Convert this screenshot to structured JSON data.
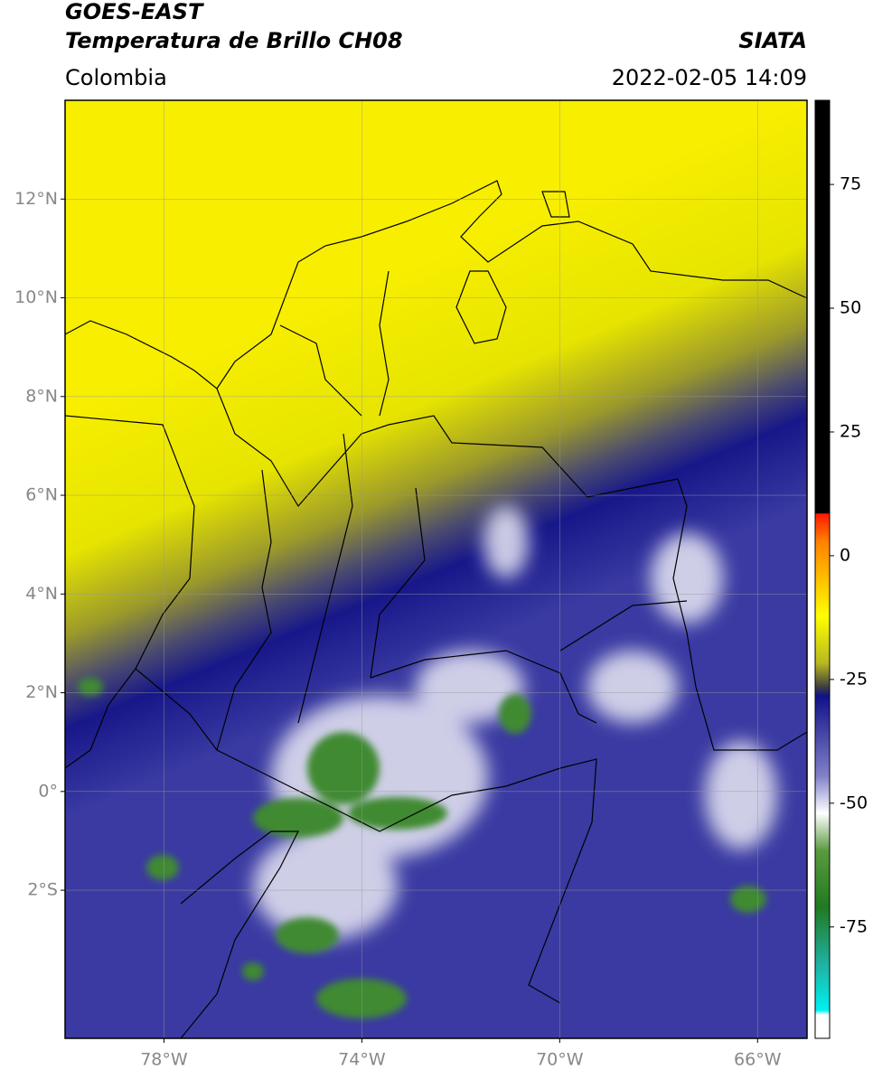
{
  "header": {
    "title": "GOES-EAST",
    "subtitle": "Temperatura de Brillo CH08",
    "region": "Colombia",
    "source": "SIATA",
    "datetime": "2022-02-05 14:09"
  },
  "map": {
    "xlim": [
      -80,
      -65
    ],
    "ylim": [
      -5,
      14
    ],
    "xticks": [
      {
        "value": -78,
        "label": "78°W"
      },
      {
        "value": -74,
        "label": "74°W"
      },
      {
        "value": -70,
        "label": "70°W"
      },
      {
        "value": -66,
        "label": "66°W"
      }
    ],
    "yticks": [
      {
        "value": -2,
        "label": "2°S"
      },
      {
        "value": 0,
        "label": "0°"
      },
      {
        "value": 2,
        "label": "2°N"
      },
      {
        "value": 4,
        "label": "4°N"
      },
      {
        "value": 6,
        "label": "6°N"
      },
      {
        "value": 8,
        "label": "8°N"
      },
      {
        "value": 10,
        "label": "10°N"
      },
      {
        "value": 12,
        "label": "12°N"
      }
    ],
    "grid": true
  },
  "colorbar": {
    "lim": [
      -97.5,
      92
    ],
    "ticks": [
      75,
      50,
      25,
      0,
      -25,
      -50,
      -75
    ]
  }
}
